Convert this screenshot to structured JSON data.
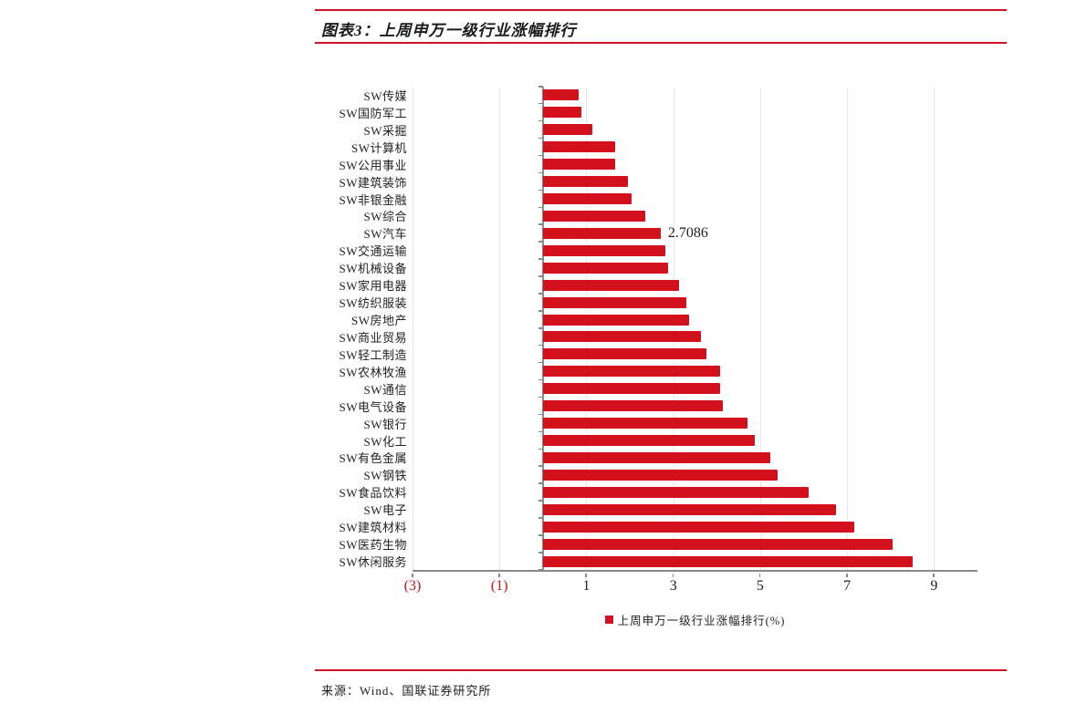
{
  "report": {
    "figure_title": "图表3：上周申万一级行业涨幅排行",
    "source_line": "来源：Wind、国联证券研究所"
  },
  "colors": {
    "bar_red": "#D2111C",
    "rule_red": "#CE1126",
    "negative_tick_red": "#C8161D",
    "axis_gray": "#898989",
    "gridline_gray": "#E7E7E7",
    "text_dark": "#1F1F1F"
  },
  "chart_data": {
    "type": "bar",
    "orientation": "horizontal",
    "title": "",
    "xlabel": "",
    "ylabel": "",
    "legend": [
      "上周申万一级行业涨幅排行(%)"
    ],
    "legend_position": "bottom",
    "grid": true,
    "xlim": [
      -3,
      10
    ],
    "x_ticks": [
      {
        "value": -3,
        "label": "(3)",
        "negative": true
      },
      {
        "value": -1,
        "label": "(1)",
        "negative": true
      },
      {
        "value": 1,
        "label": "1",
        "negative": false
      },
      {
        "value": 3,
        "label": "3",
        "negative": false
      },
      {
        "value": 5,
        "label": "5",
        "negative": false
      },
      {
        "value": 7,
        "label": "7",
        "negative": false
      },
      {
        "value": 9,
        "label": "9",
        "negative": false
      }
    ],
    "categories": [
      "SW传媒",
      "SW国防军工",
      "SW采掘",
      "SW计算机",
      "SW公用事业",
      "SW建筑装饰",
      "SW非银金融",
      "SW综合",
      "SW汽车",
      "SW交通运输",
      "SW机械设备",
      "SW家用电器",
      "SW纺织服装",
      "SW房地产",
      "SW商业贸易",
      "SW轻工制造",
      "SW农林牧渔",
      "SW通信",
      "SW电气设备",
      "SW银行",
      "SW化工",
      "SW有色金属",
      "SW钢铁",
      "SW食品饮料",
      "SW电子",
      "SW建筑材料",
      "SW医药生物",
      "SW休闲服务"
    ],
    "values": [
      0.82,
      0.88,
      1.13,
      1.67,
      1.67,
      1.95,
      2.04,
      2.36,
      2.7086,
      2.81,
      2.89,
      3.13,
      3.3,
      3.36,
      3.64,
      3.76,
      4.07,
      4.08,
      4.14,
      4.7,
      4.88,
      5.24,
      5.4,
      6.11,
      6.75,
      7.16,
      8.05,
      8.5
    ],
    "annotations": [
      {
        "category_index": 8,
        "category": "SW汽车",
        "text": "2.7086"
      }
    ]
  }
}
